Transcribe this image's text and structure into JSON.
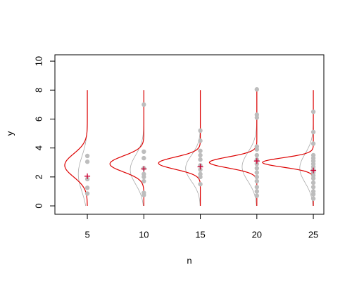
{
  "chart_data": {
    "type": "scatter",
    "xlabel": "n",
    "ylabel": "y",
    "xlim": [
      2.13,
      25.93
    ],
    "ylim": [
      -0.58,
      10.44
    ],
    "xticks": [
      5,
      10,
      15,
      20,
      25
    ],
    "yticks": [
      0,
      2,
      4,
      6,
      8,
      10
    ],
    "point_color": "#bdbdbd",
    "mean_color": "#cc0033",
    "density_color": "#dd0000",
    "prior_color": "#aaaaaa",
    "density_range": [
      0,
      8
    ],
    "groups": [
      {
        "x": 5,
        "values": [
          3.45,
          3.05,
          1.85,
          1.25,
          0.85
        ],
        "mean": 2.05,
        "density": {
          "mu": 2.8,
          "sd": 0.8,
          "peak": 2.0
        },
        "prior": {
          "mu": 2.2,
          "sd": 1.2,
          "peak": 0.8
        }
      },
      {
        "x": 10,
        "values": [
          7.0,
          3.75,
          3.3,
          2.6,
          2.2,
          2.0,
          1.7,
          0.9,
          0.75
        ],
        "mean": 2.55,
        "density": {
          "mu": 2.9,
          "sd": 0.55,
          "peak": 3.0
        },
        "prior": {
          "mu": 2.5,
          "sd": 1.0,
          "peak": 1.2
        }
      },
      {
        "x": 15,
        "values": [
          5.2,
          4.5,
          3.8,
          3.5,
          3.2,
          2.8,
          2.5,
          2.2,
          2.0,
          1.5
        ],
        "mean": 2.7,
        "density": {
          "mu": 2.95,
          "sd": 0.42,
          "peak": 3.7
        },
        "prior": {
          "mu": 2.6,
          "sd": 0.9,
          "peak": 1.3
        }
      },
      {
        "x": 20,
        "values": [
          8.05,
          6.3,
          6.1,
          4.1,
          3.9,
          3.5,
          3.2,
          2.9,
          2.6,
          2.3,
          2.0,
          1.7,
          1.3,
          1.0,
          0.7
        ],
        "mean": 3.1,
        "density": {
          "mu": 3.0,
          "sd": 0.38,
          "peak": 4.2
        },
        "prior": {
          "mu": 2.7,
          "sd": 1.0,
          "peak": 1.3
        }
      },
      {
        "x": 25,
        "values": [
          6.5,
          5.1,
          4.3,
          3.5,
          3.3,
          3.1,
          2.9,
          2.7,
          2.5,
          2.3,
          2.1,
          1.9,
          1.6,
          1.3,
          1.0,
          0.8,
          0.5
        ],
        "mean": 2.45,
        "density": {
          "mu": 3.0,
          "sd": 0.32,
          "peak": 4.5
        },
        "prior": {
          "mu": 2.6,
          "sd": 1.0,
          "peak": 1.2
        }
      }
    ]
  }
}
